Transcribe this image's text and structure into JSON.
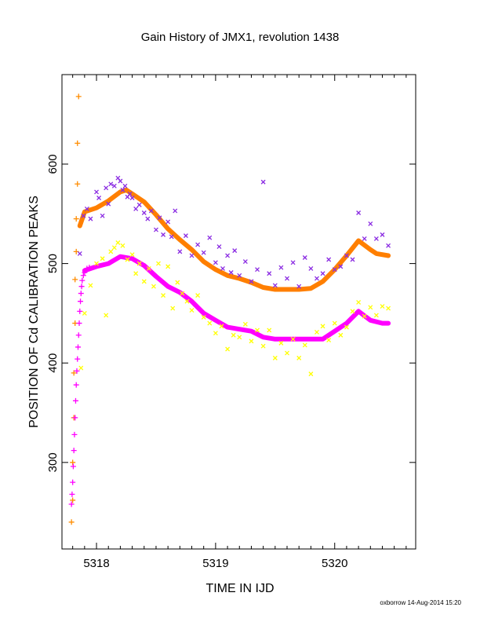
{
  "chart_data": {
    "type": "scatter",
    "title": "Gain History of JMX1, revolution 1438",
    "xlabel": "TIME IN IJD",
    "ylabel": "POSITION OF Cd CALIBRATION PEAKS",
    "footer": "oxborrow 14-Aug-2014 15:20",
    "xlim": [
      5317.71,
      5320.68
    ],
    "ylim": [
      213,
      690
    ],
    "x_ticks": [
      5318,
      5319,
      5320
    ],
    "y_ticks": [
      300,
      400,
      500,
      600
    ],
    "grid": false,
    "legend": "none",
    "series": [
      {
        "color": "#ff8c00",
        "marker": "plus",
        "x": [
          5317.79,
          5317.8,
          5317.8,
          5317.81,
          5317.81,
          5317.82,
          5317.82,
          5317.83,
          5317.83,
          5317.84,
          5317.84,
          5317.85
        ],
        "y": [
          240,
          262,
          300,
          345,
          390,
          440,
          484,
          512,
          545,
          580,
          621,
          668
        ]
      },
      {
        "color": "#ff00ff",
        "marker": "plus",
        "x": [
          5317.79,
          5317.795,
          5317.8,
          5317.805,
          5317.81,
          5317.815,
          5317.82,
          5317.825,
          5317.83,
          5317.835,
          5317.84,
          5317.845,
          5317.85,
          5317.855,
          5317.86,
          5317.865,
          5317.87,
          5317.875,
          5317.88,
          5317.89,
          5317.9,
          5317.91,
          5317.92,
          5317.94
        ],
        "y": [
          258,
          268,
          280,
          296,
          312,
          328,
          345,
          362,
          378,
          392,
          404,
          416,
          428,
          440,
          452,
          462,
          470,
          477,
          483,
          488,
          491,
          493,
          495,
          496
        ]
      },
      {
        "color": "#ff00ff",
        "marker": "line",
        "x": [
          5317.9,
          5318.0,
          5318.1,
          5318.2,
          5318.3,
          5318.4,
          5318.5,
          5318.6,
          5318.7,
          5318.8,
          5318.9,
          5319.0,
          5319.1,
          5319.2,
          5319.3,
          5319.4,
          5319.5,
          5319.6,
          5319.7,
          5319.8,
          5319.9,
          5320.0,
          5320.1,
          5320.2,
          5320.3,
          5320.4,
          5320.45
        ],
        "y": [
          493,
          497,
          500,
          507,
          505,
          498,
          487,
          477,
          471,
          462,
          450,
          443,
          436,
          434,
          432,
          426,
          424,
          424,
          424,
          424,
          424,
          432,
          440,
          452,
          443,
          440,
          440
        ]
      },
      {
        "color": "#ff7f00",
        "marker": "line",
        "x": [
          5317.86,
          5317.9,
          5318.0,
          5318.1,
          5318.2,
          5318.25,
          5318.3,
          5318.4,
          5318.5,
          5318.6,
          5318.7,
          5318.8,
          5318.9,
          5319.0,
          5319.1,
          5319.2,
          5319.3,
          5319.4,
          5319.5,
          5319.6,
          5319.7,
          5319.8,
          5319.9,
          5320.0,
          5320.1,
          5320.2,
          5320.3,
          5320.35,
          5320.45
        ],
        "y": [
          538,
          552,
          556,
          563,
          572,
          574,
          570,
          562,
          549,
          535,
          524,
          514,
          502,
          494,
          488,
          485,
          481,
          476,
          474,
          474,
          474,
          475,
          482,
          494,
          508,
          523,
          514,
          510,
          508
        ]
      },
      {
        "color": "#8a2be2",
        "marker": "cross",
        "x": [
          5317.86,
          5317.89,
          5317.92,
          5317.95,
          5318.0,
          5318.02,
          5318.05,
          5318.08,
          5318.1,
          5318.12,
          5318.15,
          5318.18,
          5318.2,
          5318.22,
          5318.24,
          5318.26,
          5318.28,
          5318.3,
          5318.33,
          5318.36,
          5318.4,
          5318.43,
          5318.46,
          5318.5,
          5318.53,
          5318.56,
          5318.6,
          5318.63,
          5318.66,
          5318.7,
          5318.75,
          5318.8,
          5318.85,
          5318.9,
          5318.95,
          5319.0,
          5319.03,
          5319.06,
          5319.1,
          5319.13,
          5319.16,
          5319.2,
          5319.25,
          5319.3,
          5319.35,
          5319.4,
          5319.45,
          5319.5,
          5319.55,
          5319.6,
          5319.65,
          5319.7,
          5319.75,
          5319.8,
          5319.85,
          5319.9,
          5319.95,
          5320.0,
          5320.05,
          5320.1,
          5320.15,
          5320.2,
          5320.25,
          5320.3,
          5320.35,
          5320.4,
          5320.45
        ],
        "y": [
          510,
          548,
          555,
          545,
          572,
          566,
          548,
          576,
          560,
          580,
          578,
          586,
          583,
          574,
          578,
          567,
          570,
          566,
          555,
          559,
          551,
          545,
          553,
          534,
          546,
          529,
          542,
          527,
          553,
          512,
          528,
          508,
          519,
          511,
          526,
          501,
          517,
          495,
          508,
          491,
          513,
          488,
          502,
          482,
          494,
          582,
          490,
          478,
          496,
          485,
          501,
          477,
          506,
          495,
          485,
          490,
          504,
          494,
          497,
          508,
          504,
          551,
          525,
          540,
          525,
          529,
          518
        ]
      },
      {
        "color": "#ffff00",
        "marker": "cross",
        "x": [
          5317.87,
          5317.9,
          5317.95,
          5318.0,
          5318.05,
          5318.08,
          5318.12,
          5318.15,
          5318.18,
          5318.22,
          5318.26,
          5318.3,
          5318.33,
          5318.36,
          5318.4,
          5318.44,
          5318.48,
          5318.52,
          5318.56,
          5318.6,
          5318.64,
          5318.68,
          5318.72,
          5318.76,
          5318.8,
          5318.85,
          5318.9,
          5318.95,
          5319.0,
          5319.05,
          5319.1,
          5319.15,
          5319.2,
          5319.25,
          5319.3,
          5319.35,
          5319.4,
          5319.45,
          5319.5,
          5319.55,
          5319.6,
          5319.65,
          5319.7,
          5319.75,
          5319.8,
          5319.85,
          5319.9,
          5319.95,
          5320.0,
          5320.05,
          5320.1,
          5320.15,
          5320.2,
          5320.25,
          5320.3,
          5320.35,
          5320.4,
          5320.45
        ],
        "y": [
          395,
          450,
          478,
          500,
          505,
          448,
          512,
          516,
          521,
          518,
          504,
          509,
          490,
          500,
          482,
          495,
          477,
          500,
          468,
          497,
          455,
          481,
          470,
          462,
          453,
          468,
          446,
          440,
          430,
          437,
          414,
          428,
          426,
          439,
          422,
          433,
          417,
          433,
          405,
          420,
          410,
          424,
          405,
          418,
          389,
          431,
          437,
          423,
          440,
          428,
          436,
          452,
          461,
          447,
          456,
          448,
          457,
          455
        ]
      }
    ]
  }
}
